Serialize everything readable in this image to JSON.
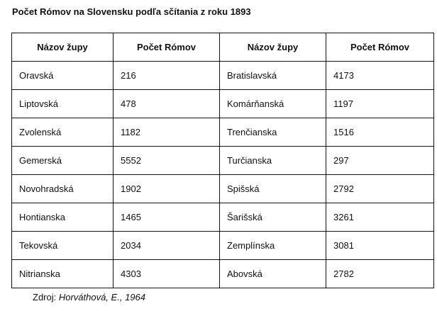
{
  "title": "Počet Rómov na Slovensku podľa sčítania z roku 1893",
  "table": {
    "headers": [
      "Názov župy",
      "Počet Rómov",
      "Názov župy",
      "Počet Rómov"
    ],
    "rows": [
      [
        "Oravská",
        "216",
        "Bratislavská",
        "4173"
      ],
      [
        "Liptovská",
        "478",
        "Komárňanská",
        "1197"
      ],
      [
        "Zvolenská",
        "1182",
        "Trenčianska",
        "1516"
      ],
      [
        "Gemerská",
        "5552",
        "Turčianska",
        "297"
      ],
      [
        "Novohradská",
        "1902",
        "Spišská",
        "2792"
      ],
      [
        "Hontianska",
        "1465",
        "Šarišská",
        "3261"
      ],
      [
        "Tekovská",
        "2034",
        "Zemplínska",
        "3081"
      ],
      [
        "Nitrianska",
        "4303",
        "Abovská",
        "2782"
      ]
    ]
  },
  "source": {
    "label": "Zdroj:",
    "citation": "Horváthová, E., 1964"
  }
}
